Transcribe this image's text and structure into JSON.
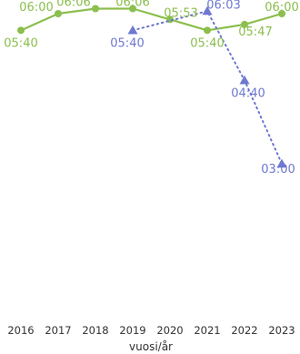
{
  "chart_data": {
    "type": "line",
    "title": "",
    "xlabel": "vuosi/år",
    "ylabel": "",
    "x": [
      "2016",
      "2017",
      "2018",
      "2019",
      "2020",
      "2021",
      "2022",
      "2023"
    ],
    "y_unit": "time (hh:mm)",
    "ylim": [
      "00:00",
      "06:30"
    ],
    "grid": false,
    "legend": "none",
    "series": [
      {
        "color": "#8cbf4f",
        "line_style": "solid",
        "marker": "circle",
        "values": [
          "05:40",
          "06:00",
          "06:06",
          "06:06",
          "05:53",
          "05:40",
          "05:47",
          "06:00"
        ],
        "labels": [
          "05:40",
          "06:00",
          "06:06",
          "06:06",
          "05:53",
          "05:40",
          "05:47",
          "06:00"
        ]
      },
      {
        "color": "#6f79d0",
        "line_style": "dotted",
        "marker": "triangle",
        "values": [
          null,
          null,
          null,
          "05:40",
          null,
          "06:03",
          "04:40",
          "03:00"
        ],
        "labels": [
          null,
          null,
          null,
          "05:40",
          null,
          "06:03",
          "04:40",
          "03:00"
        ]
      }
    ]
  }
}
